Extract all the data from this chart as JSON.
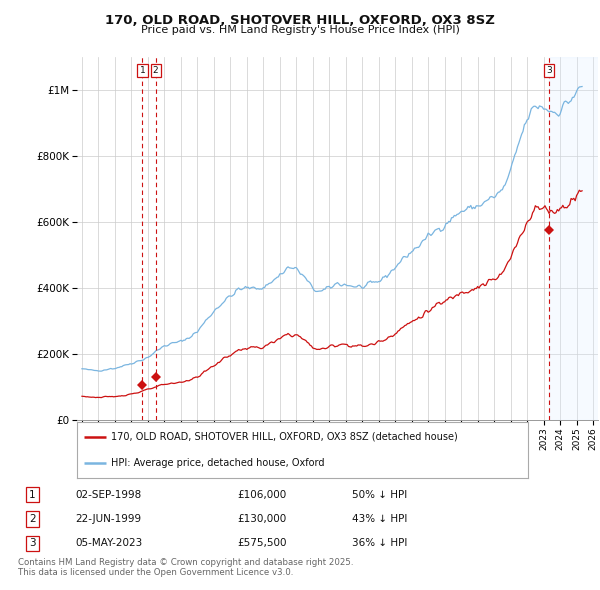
{
  "title": "170, OLD ROAD, SHOTOVER HILL, OXFORD, OX3 8SZ",
  "subtitle": "Price paid vs. HM Land Registry's House Price Index (HPI)",
  "hpi_color": "#7ab5e0",
  "price_color": "#cc1111",
  "annotation_color": "#cc1111",
  "shade_color": "#ddeeff",
  "bg_color": "#ffffff",
  "grid_color": "#cccccc",
  "ylim": [
    0,
    1100000
  ],
  "yticks": [
    0,
    200000,
    400000,
    600000,
    800000,
    1000000
  ],
  "xlim_start": 1994.7,
  "xlim_end": 2026.3,
  "legend_label_price": "170, OLD ROAD, SHOTOVER HILL, OXFORD, OX3 8SZ (detached house)",
  "legend_label_hpi": "HPI: Average price, detached house, Oxford",
  "transactions": [
    {
      "num": 1,
      "date": "02-SEP-1998",
      "price": 106000,
      "pct": "50%",
      "dir": "↓",
      "year_x": 1998.67
    },
    {
      "num": 2,
      "date": "22-JUN-1999",
      "price": 130000,
      "pct": "43%",
      "dir": "↓",
      "year_x": 1999.47
    },
    {
      "num": 3,
      "date": "05-MAY-2023",
      "price": 575500,
      "pct": "36%",
      "dir": "↓",
      "year_x": 2023.35
    }
  ],
  "shade_start": 2023.35,
  "footer": "Contains HM Land Registry data © Crown copyright and database right 2025.\nThis data is licensed under the Open Government Licence v3.0.",
  "hpi_monthly": {
    "start_year": 1995.0,
    "step": 0.08333
  }
}
